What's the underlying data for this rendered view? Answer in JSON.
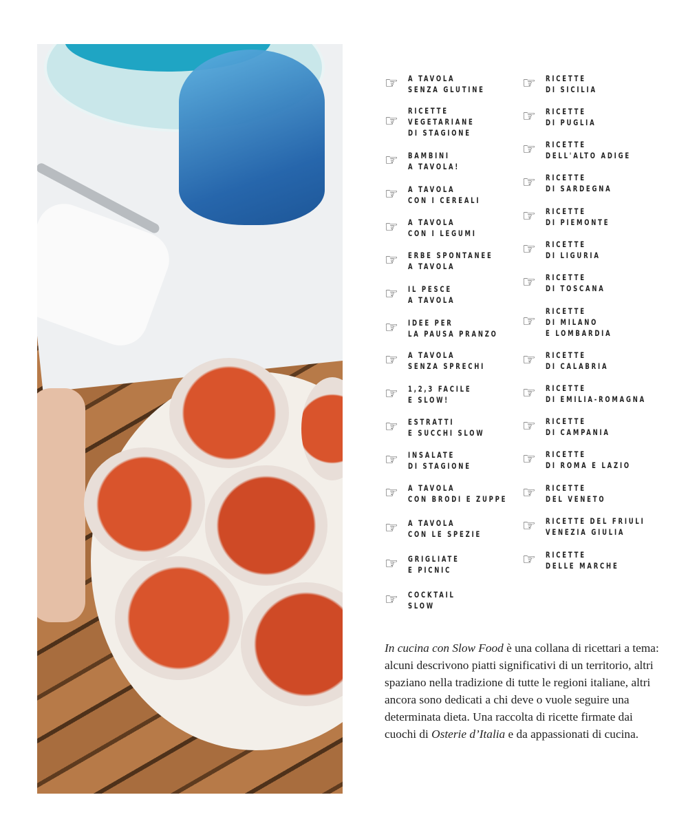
{
  "series_left": [
    {
      "icon": "pointing-hand-icon",
      "label": "A TAVOLA\nSENZA GLUTINE"
    },
    {
      "icon": "pointing-hand-icon",
      "label": "RICETTE\nVEGETARIANE\nDI STAGIONE"
    },
    {
      "icon": "pointing-hand-icon",
      "label": "BAMBINI\nA TAVOLA!"
    },
    {
      "icon": "pointing-hand-icon",
      "label": "A TAVOLA\nCON I CEREALI"
    },
    {
      "icon": "pointing-hand-icon",
      "label": "A TAVOLA\nCON I LEGUMI"
    },
    {
      "icon": "pointing-hand-icon",
      "label": "ERBE SPONTANEE\nA TAVOLA"
    },
    {
      "icon": "pointing-hand-icon",
      "label": "IL PESCE\nA TAVOLA"
    },
    {
      "icon": "pointing-hand-icon",
      "label": "IDEE PER\nLA PAUSA PRANZO"
    },
    {
      "icon": "pointing-hand-icon",
      "label": "A TAVOLA\nSENZA SPRECHI"
    },
    {
      "icon": "pointing-hand-icon",
      "label": "1,2,3 FACILE\nE SLOW!"
    },
    {
      "icon": "pointing-hand-icon",
      "label": "ESTRATTI\nE SUCCHI SLOW"
    },
    {
      "icon": "pointing-hand-icon",
      "label": "INSALATE\nDI STAGIONE"
    },
    {
      "icon": "pointing-hand-icon",
      "label": "A TAVOLA\nCON BRODI E ZUPPE"
    },
    {
      "icon": "pointing-hand-icon",
      "label": "A TAVOLA\nCON LE SPEZIE"
    },
    {
      "icon": "pointing-hand-icon",
      "label": "GRIGLIATE\nE PICNIC"
    },
    {
      "icon": "pointing-hand-icon",
      "label": "COCKTAIL\nSLOW"
    }
  ],
  "series_right": [
    {
      "icon": "pointing-hand-icon",
      "label": "RICETTE\nDI SICILIA"
    },
    {
      "icon": "pointing-hand-icon",
      "label": "RICETTE\nDI PUGLIA"
    },
    {
      "icon": "pointing-hand-icon",
      "label": "RICETTE\nDELL'ALTO ADIGE"
    },
    {
      "icon": "pointing-hand-icon",
      "label": "RICETTE\nDI SARDEGNA"
    },
    {
      "icon": "pointing-hand-icon",
      "label": "RICETTE\nDI PIEMONTE"
    },
    {
      "icon": "pointing-hand-icon",
      "label": "RICETTE\nDI LIGURIA"
    },
    {
      "icon": "pointing-hand-icon",
      "label": "RICETTE\nDI TOSCANA"
    },
    {
      "icon": "pointing-hand-icon",
      "label": "RICETTE\nDI MILANO\nE LOMBARDIA"
    },
    {
      "icon": "pointing-hand-icon",
      "label": "RICETTE\nDI CALABRIA"
    },
    {
      "icon": "pointing-hand-icon",
      "label": "RICETTE\nDI EMILIA-ROMAGNA"
    },
    {
      "icon": "pointing-hand-icon",
      "label": "RICETTE\nDI CAMPANIA"
    },
    {
      "icon": "pointing-hand-icon",
      "label": "RICETTE\nDI ROMA E LAZIO"
    },
    {
      "icon": "pointing-hand-icon",
      "label": "RICETTE\nDEL VENETO"
    },
    {
      "icon": "pointing-hand-icon",
      "label": "RICETTE DEL FRIULI\nVENEZIA GIULIA"
    },
    {
      "icon": "pointing-hand-icon",
      "label": "RICETTE\nDELLE MARCHE"
    }
  ],
  "description": {
    "title_italic": "In cucina con Slow Food",
    "part1": " è una collana di ricettari a tema: alcuni descrivono piatti significativi di un territorio, altri spaziano nella tradizione di tutte le regioni italiane, altri ancora sono dedicati a chi deve o vuole seguire una determinata dieta. Una raccolta di ricette firmate dai cuochi di ",
    "guide_italic": "Osterie d’Italia",
    "part2": " e da appassionati di cucina."
  }
}
